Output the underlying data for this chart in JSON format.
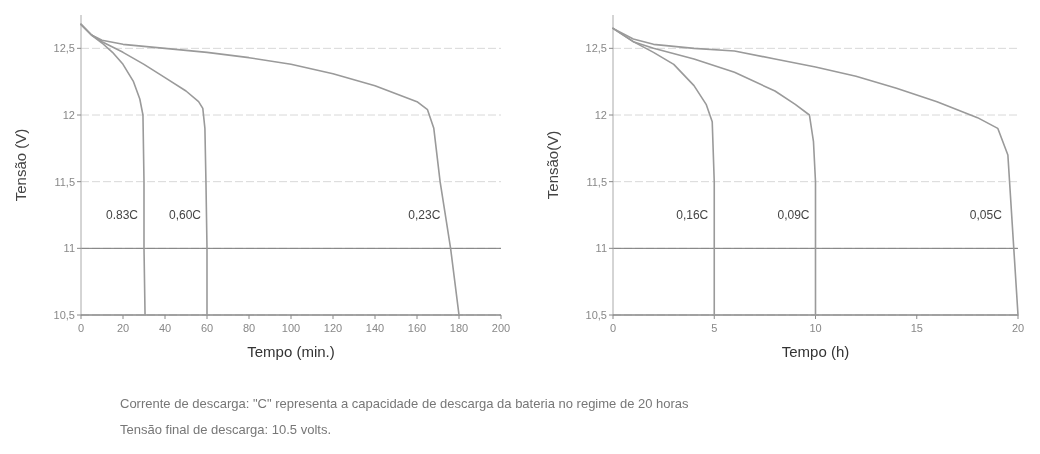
{
  "chart_data": [
    {
      "type": "line",
      "xlabel": "Tempo (min.)",
      "ylabel": "Tensão (V)",
      "xlim": [
        0,
        200
      ],
      "ylim": [
        10.5,
        12.75
      ],
      "xticks": [
        0,
        20,
        40,
        60,
        80,
        100,
        120,
        140,
        160,
        180,
        200
      ],
      "yticks": [
        {
          "value": 10.5,
          "label": "10,5"
        },
        {
          "value": 11,
          "label": "11"
        },
        {
          "value": 11.5,
          "label": "11,5"
        },
        {
          "value": 12,
          "label": "12"
        },
        {
          "value": 12.5,
          "label": "12,5"
        }
      ],
      "grid": "y",
      "ref_lines": [
        {
          "axis": "y",
          "value": 11,
          "color": "#777777"
        }
      ],
      "annotations": [
        "Corrente de descarga: \"C\" representa a capacidade de descarga da bateria no regime de 20 horas",
        "Tensão final de descarga: 10.5 volts."
      ],
      "series": [
        {
          "name": "0.83C",
          "color": "#9a9a9a",
          "x": [
            0,
            5,
            10,
            15,
            20,
            25,
            28,
            29.5,
            30,
            30,
            30.5
          ],
          "values": [
            12.68,
            12.6,
            12.54,
            12.47,
            12.38,
            12.25,
            12.12,
            12.0,
            11.5,
            11,
            10.5
          ]
        },
        {
          "name": "0,60C",
          "color": "#9a9a9a",
          "x": [
            0,
            5,
            10,
            20,
            30,
            40,
            50,
            56,
            58,
            59,
            59.5,
            60,
            60
          ],
          "values": [
            12.68,
            12.6,
            12.55,
            12.47,
            12.38,
            12.28,
            12.18,
            12.1,
            12.05,
            11.9,
            11.5,
            11,
            10.5
          ]
        },
        {
          "name": "0,23C",
          "color": "#9a9a9a",
          "x": [
            0,
            5,
            10,
            20,
            40,
            60,
            80,
            100,
            120,
            140,
            160,
            165,
            168,
            171,
            174,
            176,
            178,
            180
          ],
          "values": [
            12.68,
            12.6,
            12.56,
            12.53,
            12.5,
            12.47,
            12.43,
            12.38,
            12.31,
            12.22,
            12.1,
            12.04,
            11.9,
            11.5,
            11.2,
            11.0,
            10.75,
            10.5
          ]
        }
      ]
    },
    {
      "type": "line",
      "xlabel": "Tempo (h)",
      "ylabel": "Tensão(V)",
      "xlim": [
        0,
        20
      ],
      "ylim": [
        10.5,
        12.75
      ],
      "xticks": [
        0,
        5,
        10,
        15,
        20
      ],
      "yticks": [
        {
          "value": 10.5,
          "label": "10,5"
        },
        {
          "value": 11,
          "label": "11"
        },
        {
          "value": 11.5,
          "label": "11,5"
        },
        {
          "value": 12,
          "label": "12"
        },
        {
          "value": 12.5,
          "label": "12,5"
        }
      ],
      "grid": "y",
      "ref_lines": [
        {
          "axis": "y",
          "value": 11,
          "color": "#777777"
        }
      ],
      "series": [
        {
          "name": "0,16C",
          "color": "#9a9a9a",
          "x": [
            0,
            1,
            2,
            3,
            4,
            4.6,
            4.9,
            5,
            5
          ],
          "values": [
            12.65,
            12.55,
            12.47,
            12.38,
            12.22,
            12.08,
            11.95,
            11.5,
            10.5
          ]
        },
        {
          "name": "0,09C",
          "color": "#9a9a9a",
          "x": [
            0,
            1,
            2,
            4,
            6,
            8,
            9,
            9.7,
            9.9,
            10,
            10
          ],
          "values": [
            12.65,
            12.55,
            12.5,
            12.42,
            12.32,
            12.18,
            12.08,
            12.0,
            11.8,
            11.5,
            10.5
          ]
        },
        {
          "name": "0,05C",
          "color": "#9a9a9a",
          "x": [
            0,
            1,
            2,
            4,
            6,
            8,
            10,
            12,
            14,
            16,
            18,
            19,
            19.5,
            20
          ],
          "values": [
            12.65,
            12.57,
            12.53,
            12.5,
            12.48,
            12.42,
            12.36,
            12.29,
            12.2,
            12.1,
            11.98,
            11.9,
            11.7,
            10.5
          ]
        }
      ]
    }
  ]
}
